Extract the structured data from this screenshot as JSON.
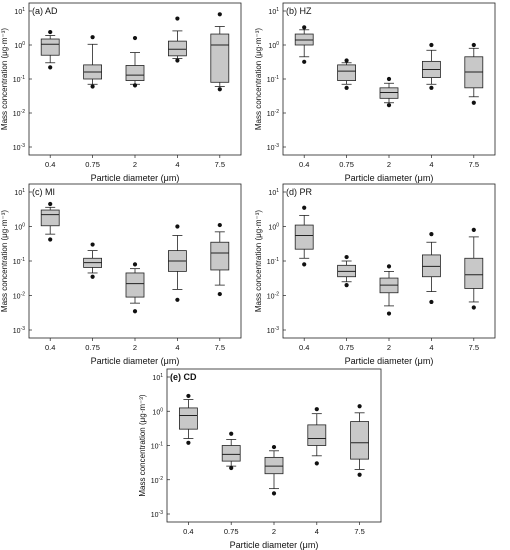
{
  "chart_data": [
    {
      "type": "box",
      "panel_label": "(a) AD",
      "xlabel": "Particle diameter (μm)",
      "ylabel": "Mass concentration (μg·m⁻³)",
      "categories": [
        "0.4",
        "0.75",
        "2",
        "4",
        "7.5"
      ],
      "yscale": "log",
      "ylim": [
        0.001,
        10
      ],
      "yticks": [
        {
          "base": "10",
          "exp": "-3"
        },
        {
          "base": "10",
          "exp": "-2"
        },
        {
          "base": "10",
          "exp": "-1"
        },
        {
          "base": "10",
          "exp": "0"
        },
        {
          "base": "10",
          "exp": "1"
        }
      ],
      "boxes": [
        {
          "whisker_low": 0.3,
          "q1": 0.5,
          "median": 1.05,
          "q3": 1.5,
          "whisker_high": 1.9,
          "outliers": [
            0.22,
            2.4
          ]
        },
        {
          "whisker_low": 0.07,
          "q1": 0.1,
          "median": 0.16,
          "q3": 0.26,
          "whisker_high": 1.05,
          "outliers": [
            0.06,
            1.7
          ]
        },
        {
          "whisker_low": 0.07,
          "q1": 0.09,
          "median": 0.13,
          "q3": 0.25,
          "whisker_high": 0.6,
          "outliers": [
            0.065,
            1.6
          ]
        },
        {
          "whisker_low": 0.4,
          "q1": 0.48,
          "median": 0.75,
          "q3": 1.3,
          "whisker_high": 2.6,
          "outliers": [
            0.35,
            6.0
          ]
        },
        {
          "whisker_low": 0.06,
          "q1": 0.08,
          "median": 1.0,
          "q3": 2.1,
          "whisker_high": 3.5,
          "outliers": [
            0.05,
            8.0
          ]
        }
      ]
    },
    {
      "type": "box",
      "panel_label": "(b) HZ",
      "xlabel": "Particle diameter (μm)",
      "ylabel": "Mass concentration (μg·m⁻³)",
      "categories": [
        "0.4",
        "0.75",
        "2",
        "4",
        "7.5"
      ],
      "yscale": "log",
      "ylim": [
        0.001,
        10
      ],
      "yticks": [
        {
          "base": "10",
          "exp": "-3"
        },
        {
          "base": "10",
          "exp": "-2"
        },
        {
          "base": "10",
          "exp": "-1"
        },
        {
          "base": "10",
          "exp": "0"
        },
        {
          "base": "10",
          "exp": "1"
        }
      ],
      "boxes": [
        {
          "whisker_low": 0.45,
          "q1": 1.0,
          "median": 1.4,
          "q3": 2.1,
          "whisker_high": 2.8,
          "outliers": [
            0.32,
            3.3
          ]
        },
        {
          "whisker_low": 0.07,
          "q1": 0.09,
          "median": 0.17,
          "q3": 0.26,
          "whisker_high": 0.3,
          "outliers": [
            0.055,
            0.35
          ]
        },
        {
          "whisker_low": 0.02,
          "q1": 0.027,
          "median": 0.04,
          "q3": 0.055,
          "whisker_high": 0.075,
          "outliers": [
            0.017,
            0.1
          ]
        },
        {
          "whisker_low": 0.07,
          "q1": 0.11,
          "median": 0.19,
          "q3": 0.33,
          "whisker_high": 0.7,
          "outliers": [
            0.055,
            1.0
          ]
        },
        {
          "whisker_low": 0.03,
          "q1": 0.055,
          "median": 0.16,
          "q3": 0.45,
          "whisker_high": 0.8,
          "outliers": [
            0.02,
            1.0
          ]
        }
      ]
    },
    {
      "type": "box",
      "panel_label": "(c) MI",
      "xlabel": "Particle diameter (μm)",
      "ylabel": "Mass concentration (μg·m⁻³)",
      "categories": [
        "0.4",
        "0.75",
        "2",
        "4",
        "7.5"
      ],
      "yscale": "log",
      "ylim": [
        0.001,
        10
      ],
      "yticks": [
        {
          "base": "10",
          "exp": "-3"
        },
        {
          "base": "10",
          "exp": "-2"
        },
        {
          "base": "10",
          "exp": "-1"
        },
        {
          "base": "10",
          "exp": "0"
        },
        {
          "base": "10",
          "exp": "1"
        }
      ],
      "boxes": [
        {
          "whisker_low": 0.6,
          "q1": 1.05,
          "median": 2.2,
          "q3": 3.0,
          "whisker_high": 3.6,
          "outliers": [
            0.42,
            4.5
          ]
        },
        {
          "whisker_low": 0.045,
          "q1": 0.065,
          "median": 0.09,
          "q3": 0.12,
          "whisker_high": 0.2,
          "outliers": [
            0.035,
            0.3
          ]
        },
        {
          "whisker_low": 0.006,
          "q1": 0.009,
          "median": 0.022,
          "q3": 0.045,
          "whisker_high": 0.06,
          "outliers": [
            0.0035,
            0.08
          ]
        },
        {
          "whisker_low": 0.015,
          "q1": 0.05,
          "median": 0.1,
          "q3": 0.2,
          "whisker_high": 0.55,
          "outliers": [
            0.0075,
            1.0
          ]
        },
        {
          "whisker_low": 0.02,
          "q1": 0.055,
          "median": 0.17,
          "q3": 0.35,
          "whisker_high": 0.7,
          "outliers": [
            0.011,
            1.1
          ]
        }
      ]
    },
    {
      "type": "box",
      "panel_label": "(d) PR",
      "xlabel": "Particle diameter (μm)",
      "ylabel": "Mass concentration (μg·m⁻³)",
      "categories": [
        "0.4",
        "0.75",
        "2",
        "4",
        "7.5"
      ],
      "yscale": "log",
      "ylim": [
        0.001,
        10
      ],
      "yticks": [
        {
          "base": "10",
          "exp": "-3"
        },
        {
          "base": "10",
          "exp": "-2"
        },
        {
          "base": "10",
          "exp": "-1"
        },
        {
          "base": "10",
          "exp": "0"
        },
        {
          "base": "10",
          "exp": "1"
        }
      ],
      "boxes": [
        {
          "whisker_low": 0.12,
          "q1": 0.22,
          "median": 0.55,
          "q3": 1.1,
          "whisker_high": 2.1,
          "outliers": [
            0.08,
            3.5
          ]
        },
        {
          "whisker_low": 0.025,
          "q1": 0.035,
          "median": 0.05,
          "q3": 0.075,
          "whisker_high": 0.1,
          "outliers": [
            0.02,
            0.13
          ]
        },
        {
          "whisker_low": 0.005,
          "q1": 0.012,
          "median": 0.02,
          "q3": 0.032,
          "whisker_high": 0.05,
          "outliers": [
            0.003,
            0.07
          ]
        },
        {
          "whisker_low": 0.013,
          "q1": 0.035,
          "median": 0.07,
          "q3": 0.15,
          "whisker_high": 0.35,
          "outliers": [
            0.0065,
            0.6
          ]
        },
        {
          "whisker_low": 0.0065,
          "q1": 0.016,
          "median": 0.04,
          "q3": 0.12,
          "whisker_high": 0.5,
          "outliers": [
            0.0045,
            0.8
          ]
        }
      ]
    },
    {
      "type": "box",
      "panel_label": "(e) CD",
      "xlabel": "Particle diameter (μm)",
      "ylabel": "Mass concentration (μg·m⁻³)",
      "categories": [
        "0.4",
        "0.75",
        "2",
        "4",
        "7.5"
      ],
      "yscale": "log",
      "ylim": [
        0.001,
        10
      ],
      "yticks": [
        {
          "base": "10",
          "exp": "-3"
        },
        {
          "base": "10",
          "exp": "-2"
        },
        {
          "base": "10",
          "exp": "-1"
        },
        {
          "base": "10",
          "exp": "0"
        },
        {
          "base": "10",
          "exp": "1"
        }
      ],
      "boxes": [
        {
          "whisker_low": 0.16,
          "q1": 0.3,
          "median": 0.75,
          "q3": 1.25,
          "whisker_high": 2.2,
          "outliers": [
            0.12,
            2.8
          ]
        },
        {
          "whisker_low": 0.025,
          "q1": 0.035,
          "median": 0.055,
          "q3": 0.1,
          "whisker_high": 0.15,
          "outliers": [
            0.022,
            0.22
          ]
        },
        {
          "whisker_low": 0.0055,
          "q1": 0.015,
          "median": 0.025,
          "q3": 0.045,
          "whisker_high": 0.07,
          "outliers": [
            0.004,
            0.09
          ]
        },
        {
          "whisker_low": 0.05,
          "q1": 0.1,
          "median": 0.16,
          "q3": 0.4,
          "whisker_high": 0.85,
          "outliers": [
            0.03,
            1.15
          ]
        },
        {
          "whisker_low": 0.02,
          "q1": 0.04,
          "median": 0.12,
          "q3": 0.5,
          "whisker_high": 0.9,
          "outliers": [
            0.014,
            1.4
          ]
        }
      ]
    }
  ]
}
